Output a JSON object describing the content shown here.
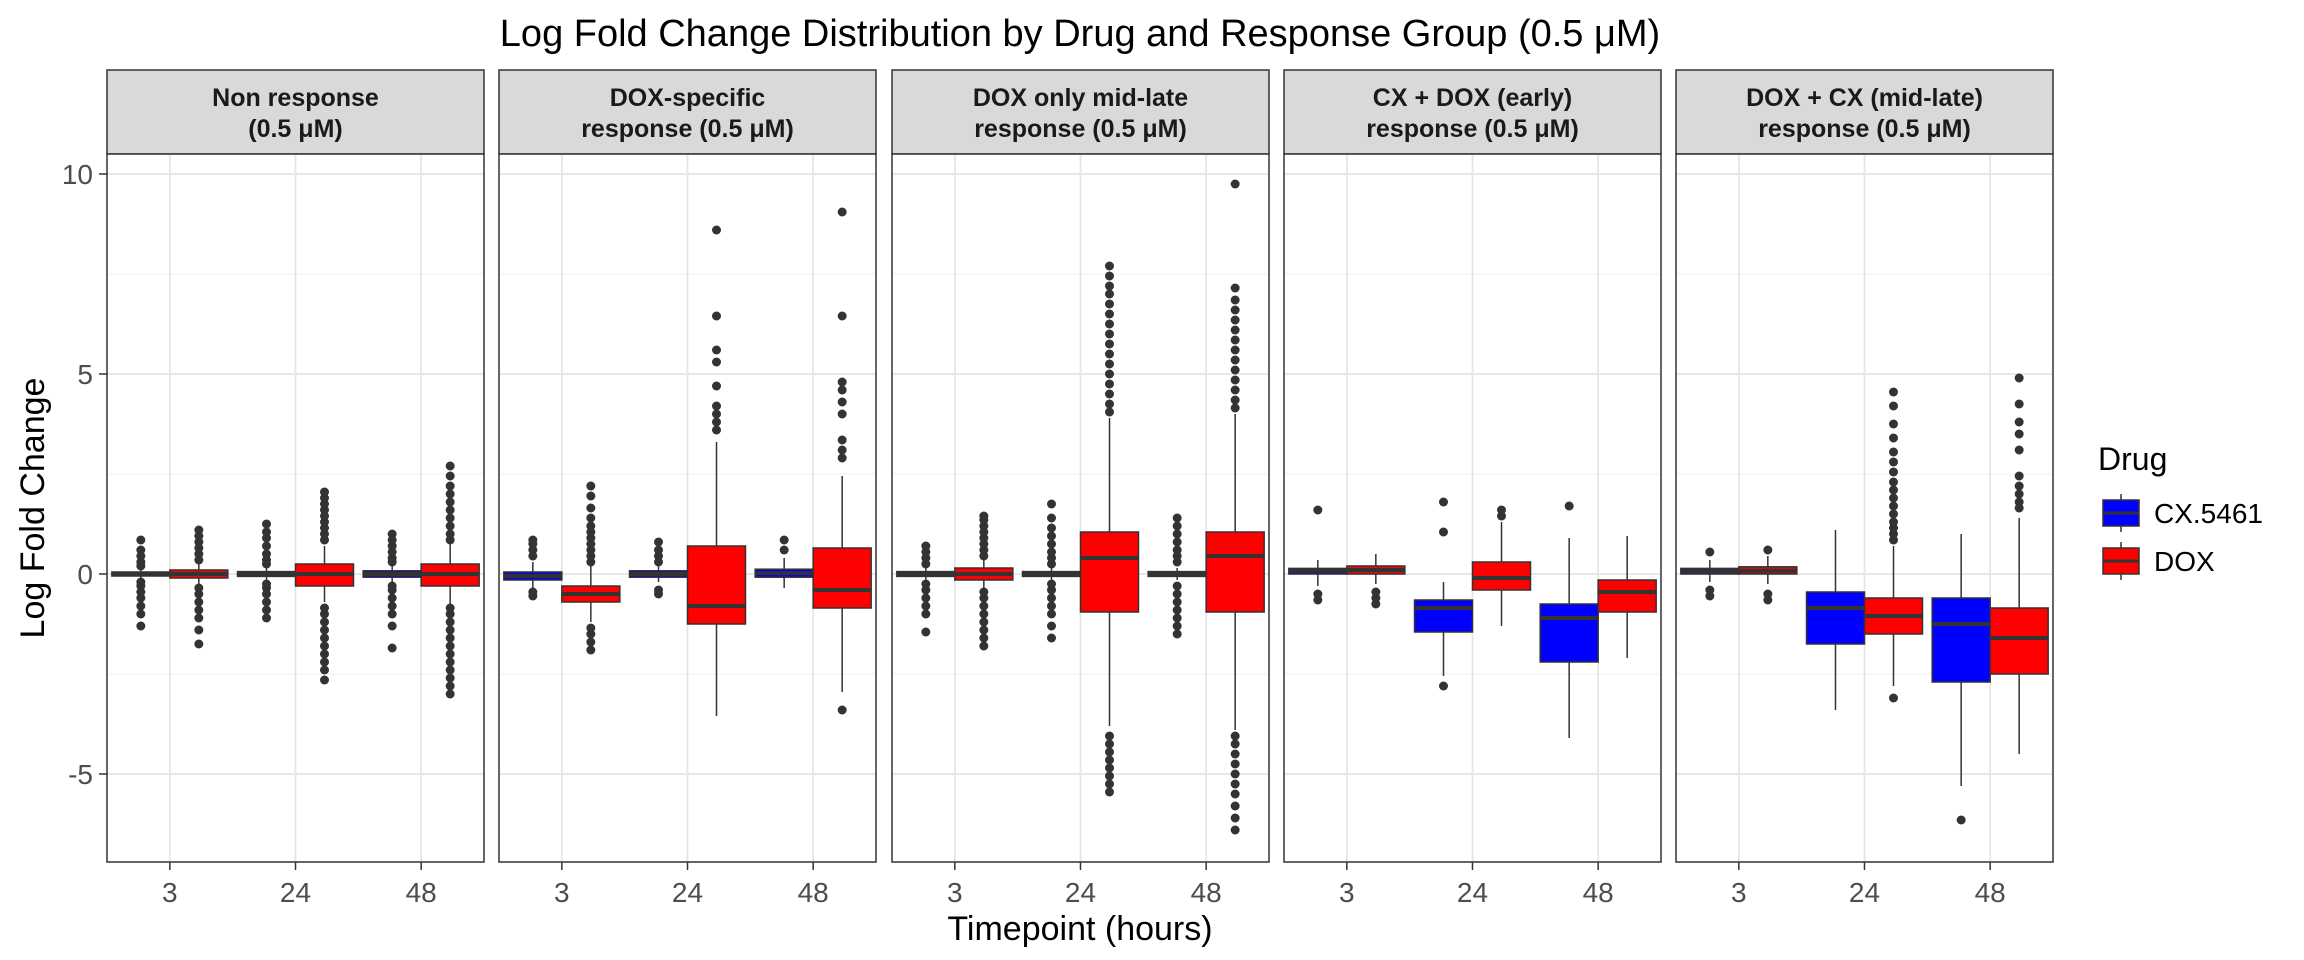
{
  "chart_data": {
    "type": "boxplot",
    "title": "Log Fold Change Distribution by Drug and Response Group (0.5 μM)",
    "xlabel": "Timepoint (hours)",
    "ylabel": "Log Fold Change",
    "ylim": [
      -7.2,
      10.5
    ],
    "y_ticks": [
      -5,
      0,
      5,
      10
    ],
    "categories": [
      "3",
      "24",
      "48"
    ],
    "grid": true,
    "legend": {
      "title": "Drug",
      "position": "right",
      "items": [
        {
          "name": "CX.5461",
          "color": "#0000FF"
        },
        {
          "name": "DOX",
          "color": "#FF0000"
        }
      ]
    },
    "panels": [
      {
        "label_lines": [
          "Non response",
          "(0.5 μM)"
        ],
        "groups": [
          {
            "timepoint": "3",
            "drug": "CX.5461",
            "q1": -0.05,
            "median": 0.0,
            "q3": 0.05,
            "whisker_low": -0.12,
            "whisker_high": 0.12,
            "outliers": [
              -1.3,
              -1.0,
              -0.8,
              -0.6,
              -0.45,
              -0.3,
              -0.2,
              0.2,
              0.3,
              0.45,
              0.6,
              0.85
            ]
          },
          {
            "timepoint": "3",
            "drug": "DOX",
            "q1": -0.1,
            "median": 0.0,
            "q3": 0.1,
            "whisker_low": -0.25,
            "whisker_high": 0.25,
            "outliers": [
              -1.75,
              -1.4,
              -1.1,
              -0.9,
              -0.7,
              -0.5,
              -0.35,
              0.35,
              0.5,
              0.65,
              0.8,
              0.95,
              1.1
            ]
          },
          {
            "timepoint": "24",
            "drug": "CX.5461",
            "q1": -0.06,
            "median": 0.0,
            "q3": 0.06,
            "whisker_low": -0.15,
            "whisker_high": 0.15,
            "outliers": [
              -1.1,
              -0.9,
              -0.7,
              -0.5,
              -0.35,
              -0.25,
              0.25,
              0.35,
              0.5,
              0.7,
              0.9,
              1.05,
              1.25
            ]
          },
          {
            "timepoint": "24",
            "drug": "DOX",
            "q1": -0.3,
            "median": 0.0,
            "q3": 0.25,
            "whisker_low": -0.7,
            "whisker_high": 0.7,
            "outliers": [
              -2.65,
              -2.4,
              -2.2,
              -2.0,
              -1.8,
              -1.6,
              -1.4,
              -1.2,
              -1.0,
              -0.85,
              0.85,
              1.0,
              1.15,
              1.3,
              1.45,
              1.6,
              1.75,
              1.9,
              2.05
            ]
          },
          {
            "timepoint": "48",
            "drug": "CX.5461",
            "q1": -0.08,
            "median": 0.0,
            "q3": 0.08,
            "whisker_low": -0.2,
            "whisker_high": 0.2,
            "outliers": [
              -1.85,
              -1.3,
              -1.0,
              -0.8,
              -0.6,
              -0.4,
              -0.3,
              0.3,
              0.4,
              0.55,
              0.7,
              0.85,
              1.0
            ]
          },
          {
            "timepoint": "48",
            "drug": "DOX",
            "q1": -0.3,
            "median": 0.0,
            "q3": 0.25,
            "whisker_low": -0.75,
            "whisker_high": 0.75,
            "outliers": [
              -3.0,
              -2.8,
              -2.6,
              -2.4,
              -2.2,
              -2.0,
              -1.8,
              -1.6,
              -1.4,
              -1.2,
              -1.0,
              -0.85,
              0.85,
              1.0,
              1.2,
              1.4,
              1.6,
              1.8,
              2.0,
              2.2,
              2.45,
              2.7
            ]
          }
        ]
      },
      {
        "label_lines": [
          "DOX-specific",
          "response (0.5 μM)"
        ],
        "groups": [
          {
            "timepoint": "3",
            "drug": "CX.5461",
            "q1": -0.15,
            "median": -0.05,
            "q3": 0.05,
            "whisker_low": -0.35,
            "whisker_high": 0.3,
            "outliers": [
              -0.55,
              -0.45,
              0.45,
              0.6,
              0.75,
              0.85
            ]
          },
          {
            "timepoint": "3",
            "drug": "DOX",
            "q1": -0.7,
            "median": -0.5,
            "q3": -0.3,
            "whisker_low": -1.2,
            "whisker_high": 0.2,
            "outliers": [
              -1.9,
              -1.7,
              -1.5,
              -1.35,
              0.3,
              0.45,
              0.6,
              0.75,
              0.9,
              1.05,
              1.2,
              1.4,
              1.65,
              1.95,
              2.2
            ]
          },
          {
            "timepoint": "24",
            "drug": "CX.5461",
            "q1": -0.08,
            "median": 0.0,
            "q3": 0.08,
            "whisker_low": -0.2,
            "whisker_high": 0.2,
            "outliers": [
              -0.5,
              -0.4,
              0.3,
              0.45,
              0.6,
              0.8
            ]
          },
          {
            "timepoint": "24",
            "drug": "DOX",
            "q1": -1.25,
            "median": -0.8,
            "q3": 0.7,
            "whisker_low": -3.55,
            "whisker_high": 3.3,
            "outliers": [
              3.6,
              3.8,
              4.0,
              4.2,
              4.7,
              5.3,
              5.6,
              6.45,
              8.6
            ]
          },
          {
            "timepoint": "48",
            "drug": "CX.5461",
            "q1": -0.08,
            "median": 0.02,
            "q3": 0.12,
            "whisker_low": -0.35,
            "whisker_high": 0.4,
            "outliers": [
              0.6,
              0.85
            ]
          },
          {
            "timepoint": "48",
            "drug": "DOX",
            "q1": -0.85,
            "median": -0.4,
            "q3": 0.65,
            "whisker_low": -2.95,
            "whisker_high": 2.45,
            "outliers": [
              -3.4,
              2.9,
              3.1,
              3.35,
              4.0,
              4.3,
              4.6,
              4.8,
              6.45,
              9.05
            ]
          }
        ]
      },
      {
        "label_lines": [
          "DOX only mid-late",
          "response (0.5 μM)"
        ],
        "groups": [
          {
            "timepoint": "3",
            "drug": "CX.5461",
            "q1": -0.06,
            "median": 0.0,
            "q3": 0.06,
            "whisker_low": -0.15,
            "whisker_high": 0.15,
            "outliers": [
              -1.45,
              -1.0,
              -0.8,
              -0.6,
              -0.4,
              -0.25,
              0.25,
              0.4,
              0.55,
              0.7
            ]
          },
          {
            "timepoint": "3",
            "drug": "DOX",
            "q1": -0.15,
            "median": 0.0,
            "q3": 0.15,
            "whisker_low": -0.35,
            "whisker_high": 0.35,
            "outliers": [
              -1.8,
              -1.6,
              -1.4,
              -1.2,
              -1.0,
              -0.8,
              -0.6,
              -0.45,
              0.45,
              0.6,
              0.75,
              0.9,
              1.05,
              1.2,
              1.35,
              1.45
            ]
          },
          {
            "timepoint": "24",
            "drug": "CX.5461",
            "q1": -0.06,
            "median": 0.0,
            "q3": 0.06,
            "whisker_low": -0.15,
            "whisker_high": 0.15,
            "outliers": [
              -1.6,
              -1.3,
              -1.0,
              -0.8,
              -0.6,
              -0.4,
              -0.25,
              0.25,
              0.4,
              0.55,
              0.75,
              0.95,
              1.15,
              1.4,
              1.75
            ]
          },
          {
            "timepoint": "24",
            "drug": "DOX",
            "q1": -0.95,
            "median": 0.4,
            "q3": 1.05,
            "whisker_low": -3.8,
            "whisker_high": 3.9,
            "outliers": [
              -5.45,
              -5.25,
              -5.05,
              -4.85,
              -4.65,
              -4.45,
              -4.25,
              -4.05,
              4.05,
              4.25,
              4.5,
              4.75,
              5.0,
              5.25,
              5.5,
              5.75,
              6.0,
              6.25,
              6.5,
              6.75,
              7.0,
              7.2,
              7.45,
              7.7
            ]
          },
          {
            "timepoint": "48",
            "drug": "CX.5461",
            "q1": -0.06,
            "median": 0.0,
            "q3": 0.06,
            "whisker_low": -0.15,
            "whisker_high": 0.15,
            "outliers": [
              -1.5,
              -1.3,
              -1.1,
              -0.9,
              -0.7,
              -0.5,
              -0.3,
              0.3,
              0.45,
              0.6,
              0.8,
              1.0,
              1.2,
              1.4
            ]
          },
          {
            "timepoint": "48",
            "drug": "DOX",
            "q1": -0.95,
            "median": 0.45,
            "q3": 1.05,
            "whisker_low": -3.9,
            "whisker_high": 4.0,
            "outliers": [
              -6.4,
              -6.1,
              -5.8,
              -5.5,
              -5.25,
              -5.0,
              -4.75,
              -4.5,
              -4.25,
              -4.05,
              4.15,
              4.35,
              4.6,
              4.85,
              5.1,
              5.35,
              5.6,
              5.85,
              6.1,
              6.35,
              6.6,
              6.85,
              7.15,
              9.75
            ]
          }
        ]
      },
      {
        "label_lines": [
          "CX + DOX (early)",
          "response (0.5 μM)"
        ],
        "groups": [
          {
            "timepoint": "3",
            "drug": "CX.5461",
            "q1": 0.0,
            "median": 0.08,
            "q3": 0.14,
            "whisker_low": -0.3,
            "whisker_high": 0.35,
            "outliers": [
              -0.65,
              -0.5,
              1.6
            ]
          },
          {
            "timepoint": "3",
            "drug": "DOX",
            "q1": 0.0,
            "median": 0.1,
            "q3": 0.2,
            "whisker_low": -0.25,
            "whisker_high": 0.5,
            "outliers": [
              -0.75,
              -0.6,
              -0.45
            ]
          },
          {
            "timepoint": "24",
            "drug": "CX.5461",
            "q1": -1.45,
            "median": -0.85,
            "q3": -0.65,
            "whisker_low": -2.55,
            "whisker_high": -0.2,
            "outliers": [
              -2.8,
              1.05,
              1.8
            ]
          },
          {
            "timepoint": "24",
            "drug": "DOX",
            "q1": -0.4,
            "median": -0.1,
            "q3": 0.3,
            "whisker_low": -1.3,
            "whisker_high": 1.3,
            "outliers": [
              1.45,
              1.6
            ]
          },
          {
            "timepoint": "48",
            "drug": "CX.5461",
            "q1": -2.2,
            "median": -1.1,
            "q3": -0.75,
            "whisker_low": -4.1,
            "whisker_high": 0.9,
            "outliers": [
              1.7
            ]
          },
          {
            "timepoint": "48",
            "drug": "DOX",
            "q1": -0.95,
            "median": -0.45,
            "q3": -0.15,
            "whisker_low": -2.1,
            "whisker_high": 0.95,
            "outliers": []
          }
        ]
      },
      {
        "label_lines": [
          "DOX + CX (mid-late)",
          "response (0.5 μM)"
        ],
        "groups": [
          {
            "timepoint": "3",
            "drug": "CX.5461",
            "q1": 0.0,
            "median": 0.07,
            "q3": 0.14,
            "whisker_low": -0.2,
            "whisker_high": 0.35,
            "outliers": [
              -0.55,
              -0.4,
              0.55
            ]
          },
          {
            "timepoint": "3",
            "drug": "DOX",
            "q1": 0.0,
            "median": 0.08,
            "q3": 0.18,
            "whisker_low": -0.25,
            "whisker_high": 0.45,
            "outliers": [
              -0.65,
              -0.5,
              0.6
            ]
          },
          {
            "timepoint": "24",
            "drug": "CX.5461",
            "q1": -1.75,
            "median": -0.85,
            "q3": -0.45,
            "whisker_low": -3.4,
            "whisker_high": 1.1,
            "outliers": []
          },
          {
            "timepoint": "24",
            "drug": "DOX",
            "q1": -1.5,
            "median": -1.05,
            "q3": -0.6,
            "whisker_low": -2.8,
            "whisker_high": 0.7,
            "outliers": [
              -3.1,
              0.85,
              1.0,
              1.15,
              1.3,
              1.5,
              1.7,
              1.9,
              2.1,
              2.3,
              2.55,
              2.8,
              3.05,
              3.4,
              3.75,
              4.2,
              4.55
            ]
          },
          {
            "timepoint": "48",
            "drug": "CX.5461",
            "q1": -2.7,
            "median": -1.25,
            "q3": -0.6,
            "whisker_low": -5.3,
            "whisker_high": 1.0,
            "outliers": [
              -6.15
            ]
          },
          {
            "timepoint": "48",
            "drug": "DOX",
            "q1": -2.5,
            "median": -1.6,
            "q3": -0.85,
            "whisker_low": -4.5,
            "whisker_high": 1.4,
            "outliers": [
              1.65,
              1.8,
              2.0,
              2.2,
              2.45,
              3.1,
              3.5,
              3.8,
              4.25,
              4.9
            ]
          }
        ]
      }
    ]
  }
}
